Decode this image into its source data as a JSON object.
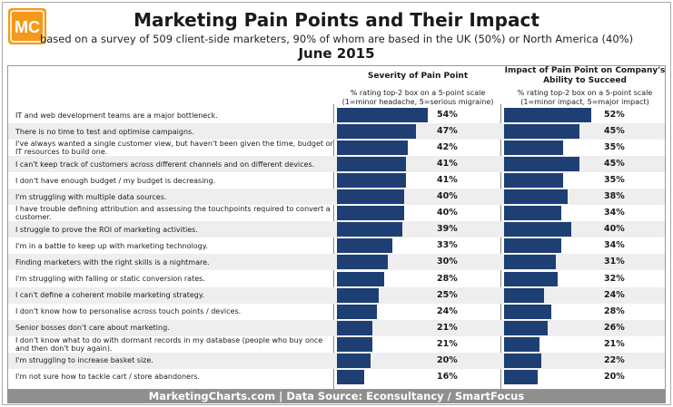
{
  "header": {
    "title": "Marketing Pain Points and Their Impact",
    "subtitle": "based on a survey of 509 client-side marketers, 90% of whom are based in the UK (50%) or North America (40%)",
    "date": "June 2015",
    "logo_text": "MC"
  },
  "colors": {
    "bar": "#1e3f74",
    "logo_orange": "#f39a1c",
    "footer_bg": "#8f8f8f"
  },
  "chart_data": {
    "type": "bar",
    "orientation": "horizontal",
    "categories": [
      "IT and web development teams are a major bottleneck.",
      "There is no time to test and optimise campaigns.",
      "I've always wanted a single customer view, but haven't been given the time, budget or IT resources to build one.",
      "I can't keep track of customers across different channels and on different devices.",
      "I don't have enough budget / my budget is decreasing.",
      "I'm struggling with multiple data sources.",
      "I have trouble defining attribution and assessing the touchpoints required to convert a customer.",
      "I struggle to prove the ROI of marketing activities.",
      "I'm in a battle to keep up with marketing technology.",
      "Finding marketers with the right skills is a nightmare.",
      "I'm struggling with falling or static conversion rates.",
      "I can't define a coherent mobile marketing strategy.",
      "I don't know how to personalise across touch points / devices.",
      "Senior bosses don't care about marketing.",
      "I don't know what to do with dormant records in my database (people who buy once and then don't buy again).",
      "I'm struggling to increase basket size.",
      "I'm not sure how to tackle cart / store abandoners."
    ],
    "series": [
      {
        "name": "Severity of Pain Point",
        "note": "% rating top-2 box on a 5-point scale (1=minor headache, 5=serious migraine)",
        "values": [
          54,
          47,
          42,
          41,
          41,
          40,
          40,
          39,
          33,
          30,
          28,
          25,
          24,
          21,
          21,
          20,
          16
        ],
        "labels": [
          "54%",
          "47%",
          "42%",
          "41%",
          "41%",
          "40%",
          "40%",
          "39%",
          "33%",
          "30%",
          "28%",
          "25%",
          "24%",
          "21%",
          "21%",
          "20%",
          "16%"
        ]
      },
      {
        "name": "Impact of Pain Point on Company's Ability to Succeed",
        "note": "% rating top-2 box on a 5-point scale (1=minor impact, 5=major impact)",
        "values": [
          52,
          45,
          35,
          45,
          35,
          38,
          34,
          40,
          34,
          31,
          32,
          24,
          28,
          26,
          21,
          22,
          20
        ],
        "labels": [
          "52%",
          "45%",
          "35%",
          "45%",
          "35%",
          "38%",
          "34%",
          "40%",
          "34%",
          "31%",
          "32%",
          "24%",
          "28%",
          "26%",
          "21%",
          "22%",
          "20%"
        ]
      }
    ],
    "xlim": [
      0,
      100
    ]
  },
  "footer": {
    "text": "MarketingCharts.com | Data Source: Econsultancy / SmartFocus"
  }
}
